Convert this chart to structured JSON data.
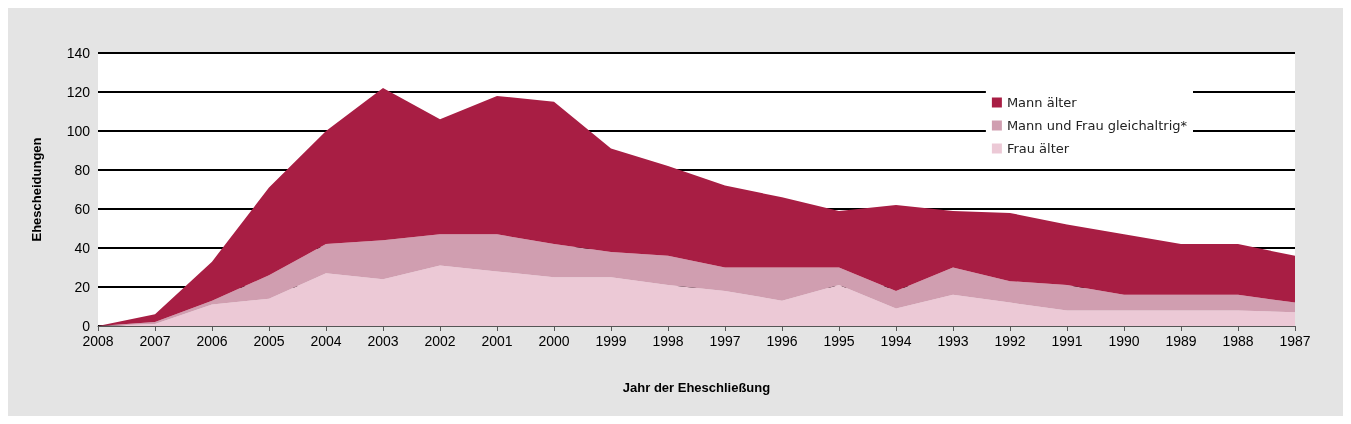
{
  "chart_data": {
    "type": "area",
    "stacked": true,
    "xlabel": "Jahr der Eheschließung",
    "ylabel": "Ehescheidungen",
    "categories": [
      "2008",
      "2007",
      "2006",
      "2005",
      "2004",
      "2003",
      "2002",
      "2001",
      "2000",
      "1999",
      "1998",
      "1997",
      "1996",
      "1995",
      "1994",
      "1993",
      "1992",
      "1991",
      "1990",
      "1989",
      "1988",
      "1987"
    ],
    "series": [
      {
        "name": "Frau älter",
        "color": "#ecc9d6",
        "values": [
          0,
          1,
          11,
          14,
          27,
          24,
          31,
          28,
          25,
          25,
          21,
          18,
          13,
          21,
          9,
          16,
          12,
          8,
          8,
          8,
          8,
          7
        ]
      },
      {
        "name": "Mann und Frau gleichaltrig*",
        "color": "#d09eb0",
        "values": [
          0,
          1,
          2,
          12,
          15,
          20,
          16,
          19,
          17,
          13,
          15,
          12,
          17,
          9,
          9,
          14,
          11,
          13,
          8,
          8,
          8,
          5
        ]
      },
      {
        "name": "Mann älter",
        "color": "#a81e44",
        "values": [
          0,
          4,
          20,
          45,
          58,
          78,
          59,
          71,
          73,
          53,
          46,
          42,
          36,
          29,
          44,
          29,
          35,
          31,
          31,
          26,
          26,
          24
        ]
      }
    ],
    "ylim": [
      0,
      140
    ],
    "yticks": [
      0,
      20,
      40,
      60,
      80,
      100,
      120,
      140
    ],
    "grid": "y",
    "legend": "top right"
  }
}
